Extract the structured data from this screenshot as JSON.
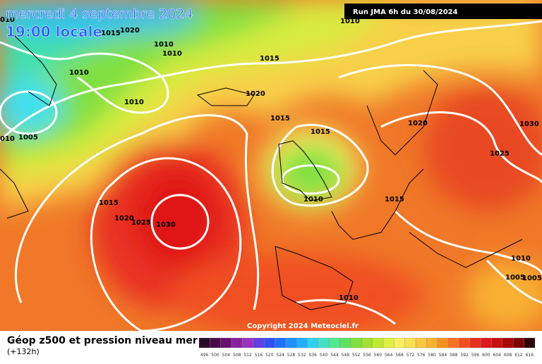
{
  "header": {
    "date": "mercredi 4 septembre 2024",
    "time": "19:00 locale",
    "run": "Run JMA 6h du 30/08/2024"
  },
  "isobar_labels": [
    "1015",
    "1020",
    "1010",
    "1010",
    "1010",
    "1015",
    "1010",
    "1020",
    "1010",
    "1005",
    "010",
    "1015",
    "1015",
    "1020",
    "1030",
    "1025",
    "1015",
    "1020",
    "1025",
    "1030",
    "1010",
    "1015",
    "1010",
    "1005",
    "1005",
    "1010",
    "010"
  ],
  "copyright": "Copyright 2024 Meteociel.fr",
  "legend": {
    "title": "Géop z500 et pression niveau mer",
    "subtitle": "(+132h)",
    "labels": [
      "496",
      "500",
      "504",
      "508",
      "512",
      "516",
      "520",
      "524",
      "528",
      "532",
      "536",
      "540",
      "544",
      "548",
      "552",
      "556",
      "560",
      "564",
      "568",
      "572",
      "576",
      "580",
      "584",
      "588",
      "592",
      "596",
      "600",
      "604",
      "608",
      "612",
      "616"
    ],
    "colors": [
      "#2a0a2a",
      "#4a0a4a",
      "#6a1070",
      "#8a20a0",
      "#9a30c0",
      "#6040e0",
      "#3050f0",
      "#2070ff",
      "#2090ff",
      "#20b0ff",
      "#30d0f0",
      "#40e0c0",
      "#50e890",
      "#60e060",
      "#80e040",
      "#a0e030",
      "#c0e830",
      "#e0f040",
      "#f8f060",
      "#f8e050",
      "#f8c840",
      "#f8b030",
      "#f89020",
      "#f87020",
      "#f05020",
      "#e83020",
      "#e01818",
      "#c81010",
      "#a80808",
      "#800000",
      "#300000"
    ]
  }
}
